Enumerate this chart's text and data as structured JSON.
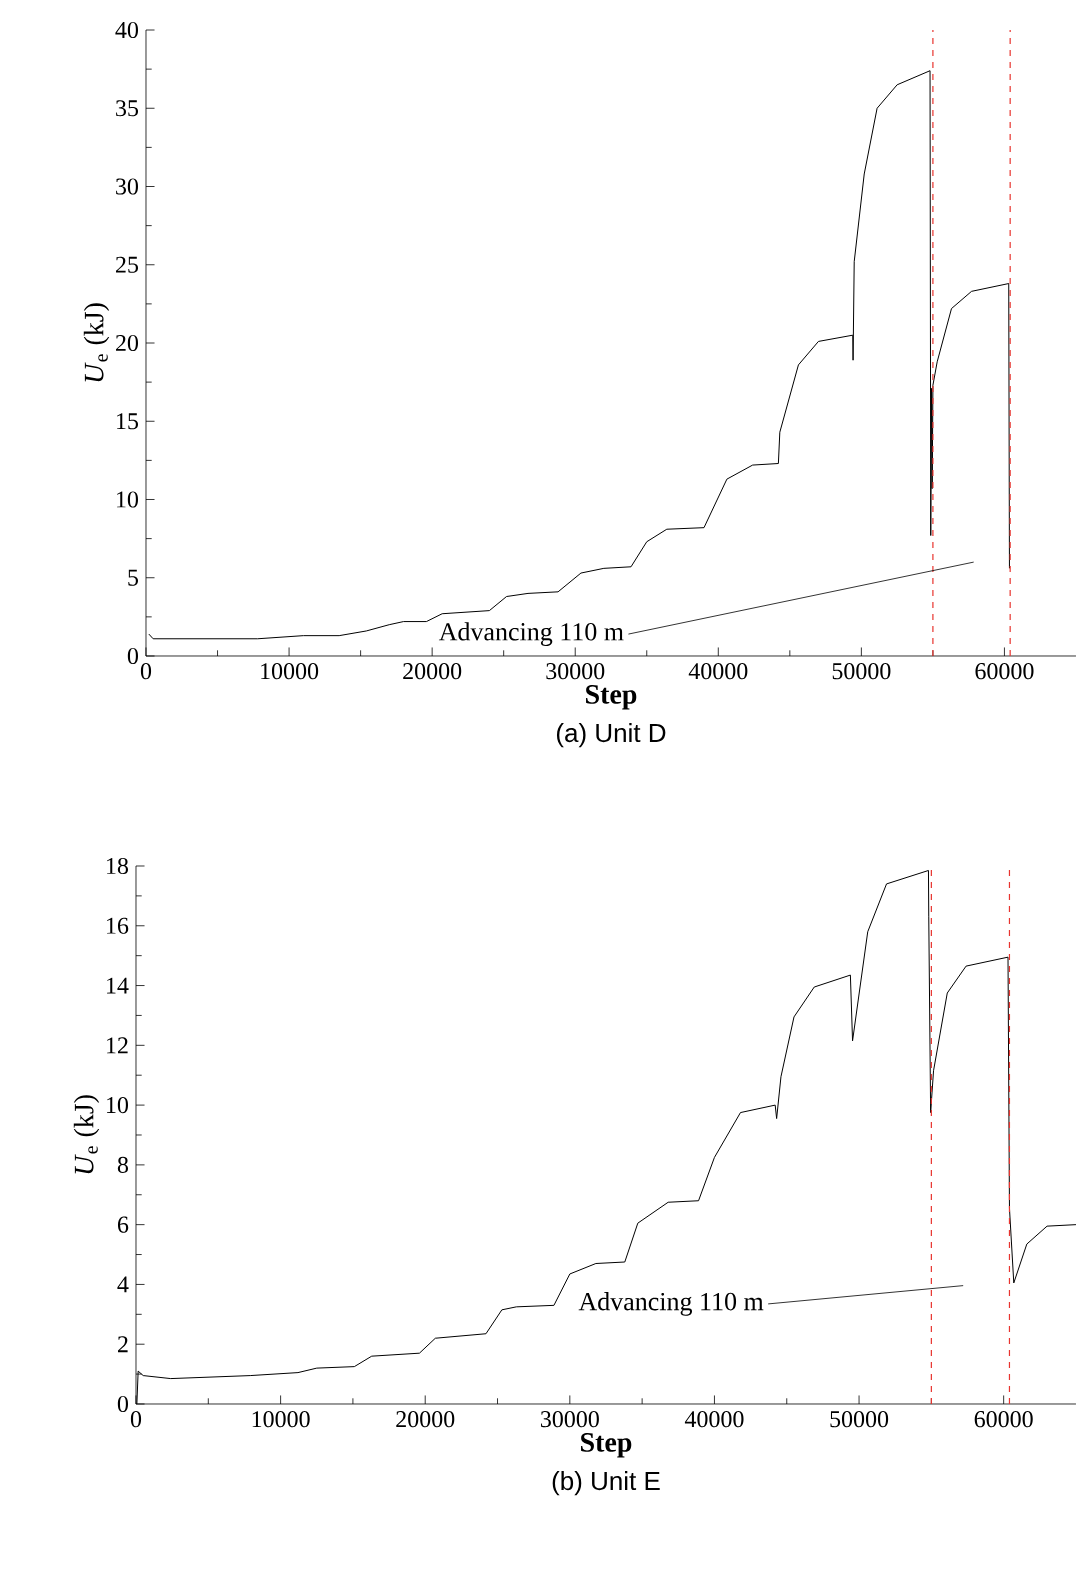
{
  "chart_data": [
    {
      "type": "line",
      "title": "(a) Unit D",
      "xlabel": "Step",
      "ylabel": "*U*$_{e}$ (kJ)",
      "xlim": [
        0,
        65000
      ],
      "ylim": [
        0,
        40
      ],
      "xticks": [
        0,
        10000,
        20000,
        30000,
        40000,
        50000,
        60000
      ],
      "yticks": [
        0,
        5,
        10,
        15,
        20,
        25,
        30,
        35,
        40
      ],
      "marker": "none",
      "line_style": "solid",
      "series": [
        {
          "color": "#000000",
          "x": [
            200,
            500,
            7800,
            11000,
            13500,
            15400,
            17000,
            18000,
            19600,
            20700,
            24000,
            25200,
            26700,
            28800,
            30400,
            32000,
            33900,
            35000,
            36400,
            39000,
            40600,
            42400,
            44200,
            44300,
            45600,
            47000,
            49400,
            49420,
            49500,
            50200,
            51100,
            52500,
            54800,
            54850,
            54900,
            54950,
            55000,
            55300,
            56300,
            57700,
            60300,
            60350
          ],
          "values": [
            1.4,
            1.1,
            1.1,
            1.3,
            1.3,
            1.6,
            2.0,
            2.2,
            2.2,
            2.7,
            2.9,
            3.8,
            4.0,
            4.1,
            5.3,
            5.6,
            5.7,
            7.3,
            8.1,
            8.2,
            11.3,
            12.2,
            12.3,
            14.3,
            18.6,
            20.1,
            20.5,
            18.9,
            25.2,
            30.8,
            35.0,
            36.5,
            37.4,
            7.7,
            17.1,
            10.7,
            17.3,
            18.8,
            22.2,
            23.3,
            23.8,
            5.6
          ]
        }
      ],
      "ref_lines": [
        {
          "axis": "x",
          "value": 55000,
          "color": "#e8342f",
          "line_style": "dashed"
        },
        {
          "axis": "x",
          "value": 60400,
          "color": "#e8342f",
          "line_style": "dashed"
        }
      ],
      "annotations": [
        "Advancing 110 m"
      ]
    },
    {
      "type": "line",
      "title": "(b) Unit E",
      "xlabel": "Step",
      "ylabel": "*U*$_{e}$ (kJ)",
      "xlim": [
        0,
        65000
      ],
      "ylim": [
        0,
        18
      ],
      "xticks": [
        0,
        10000,
        20000,
        30000,
        40000,
        50000,
        60000
      ],
      "yticks": [
        0,
        2,
        4,
        6,
        8,
        10,
        12,
        14,
        16,
        18
      ],
      "marker": "none",
      "line_style": "solid",
      "series": [
        {
          "color": "#000000",
          "x": [
            60,
            150,
            500,
            2400,
            7900,
            11200,
            12500,
            15100,
            16300,
            19600,
            20700,
            24200,
            25300,
            26300,
            28900,
            30000,
            31800,
            33800,
            34700,
            36800,
            38900,
            40000,
            41800,
            44200,
            44300,
            44600,
            45500,
            46900,
            49400,
            49550,
            50600,
            51900,
            54800,
            54820,
            54950,
            55150,
            56100,
            57400,
            60300,
            60400,
            60700,
            61600,
            63000,
            65000
          ],
          "values": [
            0,
            1.1,
            0.95,
            0.85,
            0.95,
            1.05,
            1.2,
            1.25,
            1.6,
            1.7,
            2.2,
            2.35,
            3.15,
            3.25,
            3.3,
            4.35,
            4.7,
            4.75,
            6.05,
            6.75,
            6.8,
            8.25,
            9.75,
            10.0,
            9.55,
            10.95,
            12.95,
            13.95,
            14.35,
            12.15,
            15.8,
            17.4,
            17.85,
            16.3,
            9.75,
            11.15,
            13.75,
            14.65,
            14.95,
            6.55,
            4.05,
            5.35,
            5.95,
            6.0
          ]
        }
      ],
      "ref_lines": [
        {
          "axis": "x",
          "value": 55000,
          "color": "#e8342f",
          "line_style": "dashed"
        },
        {
          "axis": "x",
          "value": 60400,
          "color": "#e8342f",
          "line_style": "dashed"
        }
      ],
      "annotations": [
        "Advancing 110 m"
      ]
    }
  ]
}
